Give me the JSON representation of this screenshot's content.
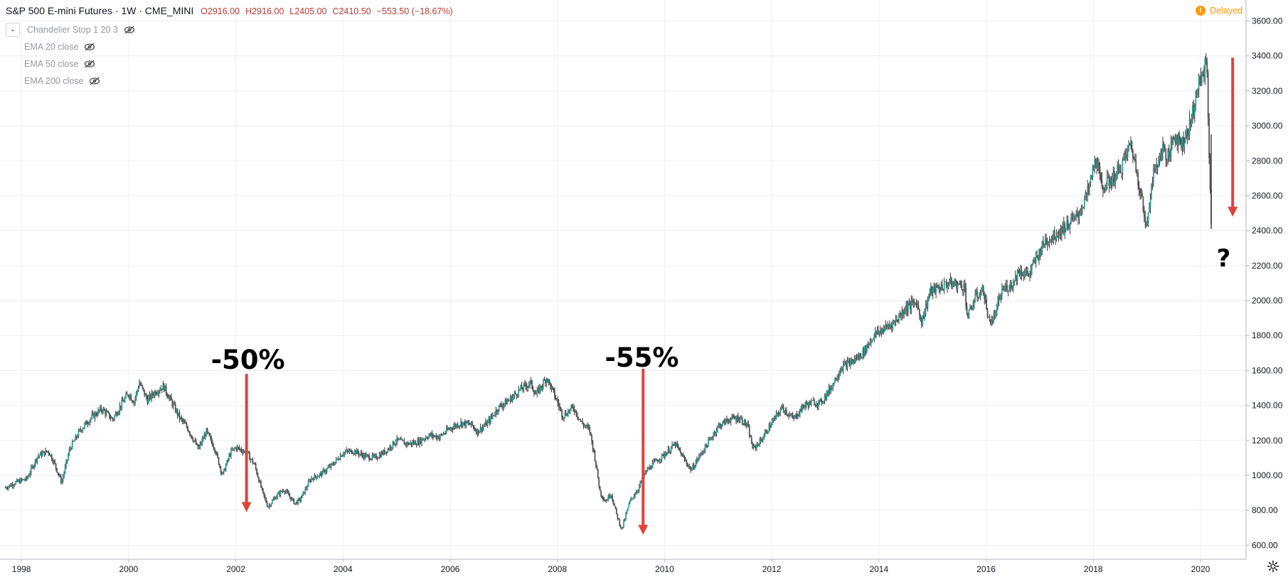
{
  "header": {
    "title": "S&P 500 E-mini Futures · 1W · CME_MINI",
    "open": "O2916.00",
    "high": "H2916.00",
    "low": "L2405.00",
    "close": "C2410.50",
    "change": "−553.50 (−18.67%)"
  },
  "legend": {
    "items": [
      {
        "label": "Chandelier Stop 1 20 3"
      },
      {
        "label": "EMA 20 close"
      },
      {
        "label": "EMA 50 close"
      },
      {
        "label": "EMA 200 close"
      }
    ]
  },
  "status": {
    "delayed_label": "Delayed",
    "icon": "exclamation-icon",
    "color": "#ff9800"
  },
  "annotations": [
    {
      "text": "-50%",
      "x": 2002.2,
      "y": 1660
    },
    {
      "text": "-55%",
      "x": 2009.55,
      "y": 1670
    },
    {
      "text": "?",
      "x": 2020.5,
      "y": 2240
    }
  ],
  "arrows": [
    {
      "x": 2002.2,
      "y_from": 1580,
      "y_to": 790,
      "color": "#e0433c"
    },
    {
      "x": 2009.6,
      "y_from": 1610,
      "y_to": 660,
      "color": "#e0433c"
    },
    {
      "x": 2020.6,
      "y_from": 3390,
      "y_to": 2480,
      "color": "#e0433c"
    }
  ],
  "chart_data": {
    "type": "candlestick",
    "title": "S&P 500 E-mini Futures",
    "x_ticks": [
      "1998",
      "2000",
      "2002",
      "2004",
      "2006",
      "2008",
      "2010",
      "2012",
      "2014",
      "2016",
      "2018",
      "2020"
    ],
    "y_ticks": [
      "600.00",
      "800.00",
      "1000.00",
      "1200.00",
      "1400.00",
      "1600.00",
      "1800.00",
      "2000.00",
      "2200.00",
      "2400.00",
      "2600.00",
      "2800.00",
      "3000.00",
      "3200.00",
      "3400.00",
      "3600.00"
    ],
    "xlim": [
      1997.6,
      2020.85
    ],
    "ylim": [
      520,
      3720
    ],
    "grid": true,
    "last_price": "2410.50",
    "up_color": "#26a69a",
    "down_color": "#555555",
    "series": [
      {
        "name": "",
        "points": [
          [
            1997.7,
            930
          ],
          [
            1997.9,
            960
          ],
          [
            1998.1,
            980
          ],
          [
            1998.3,
            1110
          ],
          [
            1998.5,
            1140
          ],
          [
            1998.6,
            1080
          ],
          [
            1998.75,
            960
          ],
          [
            1998.9,
            1150
          ],
          [
            1999.1,
            1260
          ],
          [
            1999.3,
            1330
          ],
          [
            1999.5,
            1380
          ],
          [
            1999.7,
            1320
          ],
          [
            1999.85,
            1400
          ],
          [
            2000.0,
            1470
          ],
          [
            2000.1,
            1420
          ],
          [
            2000.2,
            1530
          ],
          [
            2000.35,
            1430
          ],
          [
            2000.5,
            1480
          ],
          [
            2000.65,
            1510
          ],
          [
            2000.8,
            1420
          ],
          [
            2000.95,
            1330
          ],
          [
            2001.1,
            1270
          ],
          [
            2001.3,
            1150
          ],
          [
            2001.45,
            1250
          ],
          [
            2001.6,
            1160
          ],
          [
            2001.75,
            1000
          ],
          [
            2001.9,
            1130
          ],
          [
            2002.0,
            1160
          ],
          [
            2002.2,
            1130
          ],
          [
            2002.35,
            1060
          ],
          [
            2002.5,
            900
          ],
          [
            2002.6,
            820
          ],
          [
            2002.75,
            880
          ],
          [
            2002.9,
            920
          ],
          [
            2003.1,
            840
          ],
          [
            2003.2,
            860
          ],
          [
            2003.4,
            980
          ],
          [
            2003.6,
            1010
          ],
          [
            2003.8,
            1060
          ],
          [
            2004.0,
            1130
          ],
          [
            2004.2,
            1140
          ],
          [
            2004.4,
            1110
          ],
          [
            2004.6,
            1100
          ],
          [
            2004.8,
            1140
          ],
          [
            2005.0,
            1200
          ],
          [
            2005.2,
            1180
          ],
          [
            2005.4,
            1190
          ],
          [
            2005.6,
            1230
          ],
          [
            2005.8,
            1220
          ],
          [
            2006.0,
            1270
          ],
          [
            2006.2,
            1300
          ],
          [
            2006.4,
            1290
          ],
          [
            2006.5,
            1250
          ],
          [
            2006.7,
            1300
          ],
          [
            2006.9,
            1390
          ],
          [
            2007.1,
            1430
          ],
          [
            2007.3,
            1490
          ],
          [
            2007.5,
            1530
          ],
          [
            2007.6,
            1460
          ],
          [
            2007.8,
            1560
          ],
          [
            2007.9,
            1490
          ],
          [
            2008.0,
            1420
          ],
          [
            2008.1,
            1340
          ],
          [
            2008.3,
            1390
          ],
          [
            2008.45,
            1300
          ],
          [
            2008.6,
            1260
          ],
          [
            2008.7,
            1100
          ],
          [
            2008.8,
            900
          ],
          [
            2008.9,
            850
          ],
          [
            2009.0,
            900
          ],
          [
            2009.1,
            780
          ],
          [
            2009.2,
            690
          ],
          [
            2009.35,
            850
          ],
          [
            2009.5,
            920
          ],
          [
            2009.65,
            1020
          ],
          [
            2009.8,
            1070
          ],
          [
            2010.0,
            1120
          ],
          [
            2010.2,
            1180
          ],
          [
            2010.35,
            1100
          ],
          [
            2010.5,
            1030
          ],
          [
            2010.65,
            1110
          ],
          [
            2010.8,
            1180
          ],
          [
            2011.0,
            1280
          ],
          [
            2011.2,
            1320
          ],
          [
            2011.4,
            1330
          ],
          [
            2011.55,
            1280
          ],
          [
            2011.65,
            1150
          ],
          [
            2011.8,
            1200
          ],
          [
            2012.0,
            1300
          ],
          [
            2012.2,
            1390
          ],
          [
            2012.4,
            1320
          ],
          [
            2012.6,
            1400
          ],
          [
            2012.8,
            1420
          ],
          [
            2012.9,
            1410
          ],
          [
            2013.1,
            1500
          ],
          [
            2013.3,
            1620
          ],
          [
            2013.5,
            1650
          ],
          [
            2013.7,
            1700
          ],
          [
            2013.9,
            1800
          ],
          [
            2014.1,
            1840
          ],
          [
            2014.3,
            1880
          ],
          [
            2014.5,
            1960
          ],
          [
            2014.7,
            1990
          ],
          [
            2014.8,
            1880
          ],
          [
            2014.95,
            2050
          ],
          [
            2015.1,
            2070
          ],
          [
            2015.3,
            2100
          ],
          [
            2015.5,
            2090
          ],
          [
            2015.6,
            2080
          ],
          [
            2015.65,
            1900
          ],
          [
            2015.8,
            2020
          ],
          [
            2015.95,
            2060
          ],
          [
            2016.05,
            1880
          ],
          [
            2016.15,
            1900
          ],
          [
            2016.3,
            2060
          ],
          [
            2016.5,
            2100
          ],
          [
            2016.6,
            2170
          ],
          [
            2016.8,
            2150
          ],
          [
            2016.95,
            2250
          ],
          [
            2017.1,
            2340
          ],
          [
            2017.3,
            2380
          ],
          [
            2017.5,
            2430
          ],
          [
            2017.7,
            2480
          ],
          [
            2017.9,
            2620
          ],
          [
            2018.05,
            2820
          ],
          [
            2018.15,
            2650
          ],
          [
            2018.3,
            2680
          ],
          [
            2018.5,
            2750
          ],
          [
            2018.7,
            2900
          ],
          [
            2018.8,
            2750
          ],
          [
            2018.9,
            2600
          ],
          [
            2018.98,
            2400
          ],
          [
            2019.1,
            2700
          ],
          [
            2019.3,
            2880
          ],
          [
            2019.4,
            2800
          ],
          [
            2019.5,
            2950
          ],
          [
            2019.65,
            2900
          ],
          [
            2019.8,
            3000
          ],
          [
            2019.95,
            3220
          ],
          [
            2020.05,
            3300
          ],
          [
            2020.12,
            3380
          ],
          [
            2020.15,
            2950
          ],
          [
            2020.2,
            2410
          ]
        ]
      }
    ]
  }
}
